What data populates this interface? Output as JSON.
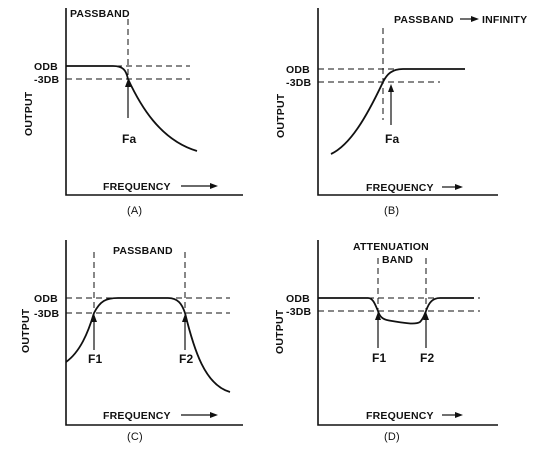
{
  "common": {
    "y_axis_label": "OUTPUT",
    "x_axis_label": "FREQUENCY",
    "level_0db": "ODB",
    "level_3db": "-3DB"
  },
  "panels": [
    {
      "caption": "(A)",
      "band_label": "PASSBAND",
      "markers": [
        "Fa"
      ]
    },
    {
      "caption": "(B)",
      "band_label": "PASSBAND",
      "band_suffix": "INFINITY",
      "markers": [
        "Fa"
      ]
    },
    {
      "caption": "(C)",
      "band_label": "PASSBAND",
      "markers": [
        "F1",
        "F2"
      ]
    },
    {
      "caption": "(D)",
      "band_label_line1": "ATTENUATION",
      "band_label_line2": "BAND",
      "markers": [
        "F1",
        "F2"
      ]
    }
  ]
}
